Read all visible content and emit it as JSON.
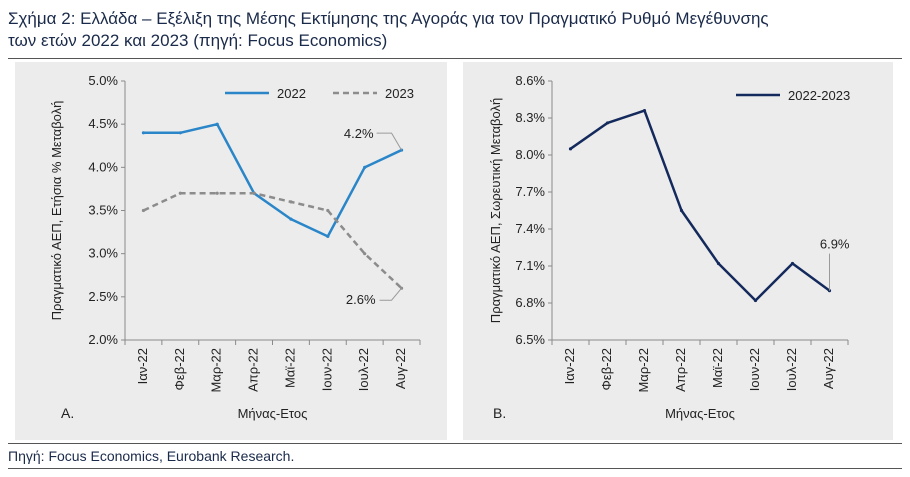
{
  "figure": {
    "title_line1": "Σχήμα 2: Ελλάδα – Εξέλιξη της Μέσης Εκτίμησης της Αγοράς για τον Πραγματικό Ρυθμό Μεγέθυνσης",
    "title_line2": "των ετών 2022 και 2023 (πηγή: Focus Economics)",
    "source": "Πηγή: Focus Economics, Eurobank Research."
  },
  "chart_data": [
    {
      "type": "line",
      "panel_label": "Α.",
      "categories": [
        "Ιαν-22",
        "Φεβ-22",
        "Μαρ-22",
        "Απρ-22",
        "Μαϊ-22",
        "Ιουν-22",
        "Ιουλ-22",
        "Αυγ-22"
      ],
      "xlabel": "Μήνας-Ετος",
      "ylabel": "Πραγματικό ΑΕΠ, Ετήσια % Μεταβολή",
      "ylim": [
        2.0,
        5.0
      ],
      "yticks": [
        2.0,
        2.5,
        3.0,
        3.5,
        4.0,
        4.5,
        5.0
      ],
      "ytick_labels": [
        "2.0%",
        "2.5%",
        "3.0%",
        "3.5%",
        "4.0%",
        "4.5%",
        "5.0%"
      ],
      "legend_position": "top-right",
      "series": [
        {
          "name": "2022",
          "values": [
            4.4,
            4.4,
            4.5,
            3.7,
            3.4,
            3.2,
            4.0,
            4.2
          ],
          "color": "#2a86c8",
          "style": "solid"
        },
        {
          "name": "2023",
          "values": [
            3.5,
            3.7,
            3.7,
            3.7,
            3.6,
            3.5,
            3.0,
            2.6
          ],
          "color": "#8c8c8c",
          "style": "dashed"
        }
      ],
      "annotations": [
        {
          "text": "4.2%",
          "series": 0,
          "index": 7
        },
        {
          "text": "2.6%",
          "series": 1,
          "index": 7
        }
      ]
    },
    {
      "type": "line",
      "panel_label": "Β.",
      "categories": [
        "Ιαν-22",
        "Φεβ-22",
        "Μαρ-22",
        "Απρ-22",
        "Μαϊ-22",
        "Ιουν-22",
        "Ιουλ-22",
        "Αυγ-22"
      ],
      "xlabel": "Μήνας-Ετος",
      "ylabel": "Πραγματικό ΑΕΠ, Σωρευτική Μεταβολή",
      "ylim": [
        6.5,
        8.6
      ],
      "yticks": [
        6.5,
        6.8,
        7.1,
        7.4,
        7.7,
        8.0,
        8.3,
        8.6
      ],
      "ytick_labels": [
        "6.5%",
        "6.8%",
        "7.1%",
        "7.4%",
        "7.7%",
        "8.0%",
        "8.3%",
        "8.6%"
      ],
      "legend_position": "top-right",
      "series": [
        {
          "name": "2022-2023",
          "values": [
            8.05,
            8.26,
            8.36,
            7.55,
            7.12,
            6.82,
            7.12,
            6.9
          ],
          "color": "#142a5c",
          "style": "solid"
        }
      ],
      "annotations": [
        {
          "text": "6.9%",
          "series": 0,
          "index": 7
        }
      ]
    }
  ]
}
